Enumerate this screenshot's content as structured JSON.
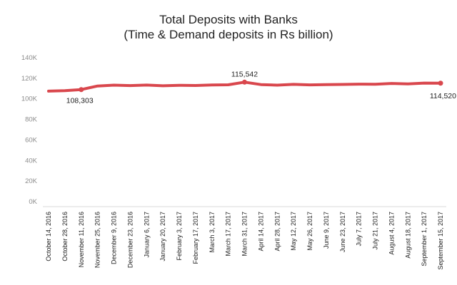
{
  "chart_data": {
    "type": "line",
    "title": "Total Deposits with Banks",
    "subtitle": "(Time & Demand deposits in Rs billion)",
    "xlabel": "",
    "ylabel": "",
    "ylim": [
      0,
      140000
    ],
    "yticks": [
      0,
      20000,
      40000,
      60000,
      80000,
      100000,
      120000,
      140000
    ],
    "ytick_labels": [
      "0K",
      "20K",
      "40K",
      "60K",
      "80K",
      "100K",
      "120K",
      "140K"
    ],
    "grid": false,
    "line_color": "#d9474d",
    "x_tick_labels": [
      "October 14, 2016",
      "October 28, 2016",
      "November 11, 2016",
      "November 25, 2016",
      "December 9, 2016",
      "December 23, 2016",
      "January 6, 2017",
      "January 20, 2017",
      "February 3, 2017",
      "February 17, 2017",
      "March 3, 2017",
      "March 17, 2017",
      "March 31, 2017",
      "April 14, 2017",
      "April 28, 2017",
      "May 12, 2017",
      "May 26, 2017",
      "June 9, 2017",
      "June 23, 2017",
      "July 7, 2017",
      "July 21, 2017",
      "August 4, 2017",
      "August 18, 2017",
      "September 1, 2017",
      "September 15, 2017"
    ],
    "series": [
      {
        "name": "",
        "x": [
          "October 14, 2016",
          "October 28, 2016",
          "November 11, 2016",
          "November 25, 2016",
          "December 9, 2016",
          "December 23, 2016",
          "January 6, 2017",
          "January 20, 2017",
          "February 3, 2017",
          "February 17, 2017",
          "March 3, 2017",
          "March 17, 2017",
          "March 31, 2017",
          "April 14, 2017",
          "April 28, 2017",
          "May 12, 2017",
          "May 26, 2017",
          "June 9, 2017",
          "June 23, 2017",
          "July 7, 2017",
          "July 21, 2017",
          "August 4, 2017",
          "August 18, 2017",
          "September 1, 2017",
          "September 15, 2017"
        ],
        "values": [
          106800,
          107200,
          108303,
          111800,
          112600,
          112200,
          112700,
          112000,
          112500,
          112300,
          112800,
          113000,
          115542,
          113200,
          112600,
          113400,
          112900,
          113100,
          113300,
          113600,
          113500,
          114300,
          113900,
          114600,
          114520
        ]
      }
    ],
    "annotations": [
      {
        "x": "November 11, 2016",
        "value": 108303,
        "label": "108,303"
      },
      {
        "x": "March 31, 2017",
        "value": 115542,
        "label": "115,542"
      },
      {
        "x": "September 15, 2017",
        "value": 114520,
        "label": "114,520"
      }
    ]
  }
}
